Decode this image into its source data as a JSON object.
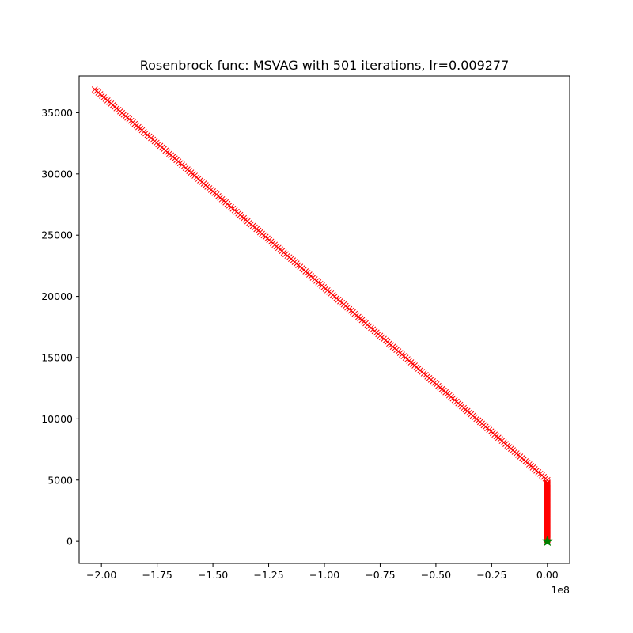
{
  "chart_data": {
    "type": "scatter",
    "title": "Rosenbrock func: MSVAG with 501 iterations, lr=0.009277",
    "xlabel": "",
    "ylabel": "",
    "x_offset_label": "1e8",
    "x_offset_multiplier": 100000000,
    "xlim": [
      -210000000.0,
      10000000.0
    ],
    "ylim": [
      -1800,
      38000
    ],
    "x_ticks": [
      -200000000.0,
      -175000000.0,
      -150000000.0,
      -125000000.0,
      -100000000.0,
      -75000000.0,
      -50000000.0,
      -25000000.0,
      0
    ],
    "x_tick_labels": [
      "−2.00",
      "−1.75",
      "−1.50",
      "−1.25",
      "−1.00",
      "−0.75",
      "−0.50",
      "−0.25",
      "0.00"
    ],
    "y_ticks": [
      0,
      5000,
      10000,
      15000,
      20000,
      25000,
      30000,
      35000
    ],
    "y_tick_labels": [
      "0",
      "5000",
      "10000",
      "15000",
      "20000",
      "25000",
      "30000",
      "35000"
    ],
    "grid": false,
    "legend": "none",
    "colors": {
      "path": "#ff0000",
      "endpoint": "#008000"
    },
    "series": [
      {
        "marker": "x",
        "color": "#ff0000",
        "segments": [
          {
            "x_start": -203000000.0,
            "y_start": 36900,
            "x_end": 0,
            "y_end": 5000,
            "points": 250
          },
          {
            "x_start": 0,
            "y_start": 4800,
            "x_end": 0,
            "y_end": 100,
            "points": 250
          }
        ]
      },
      {
        "marker": "star",
        "color": "#008000",
        "points": [
          [
            0,
            0
          ]
        ]
      }
    ]
  }
}
